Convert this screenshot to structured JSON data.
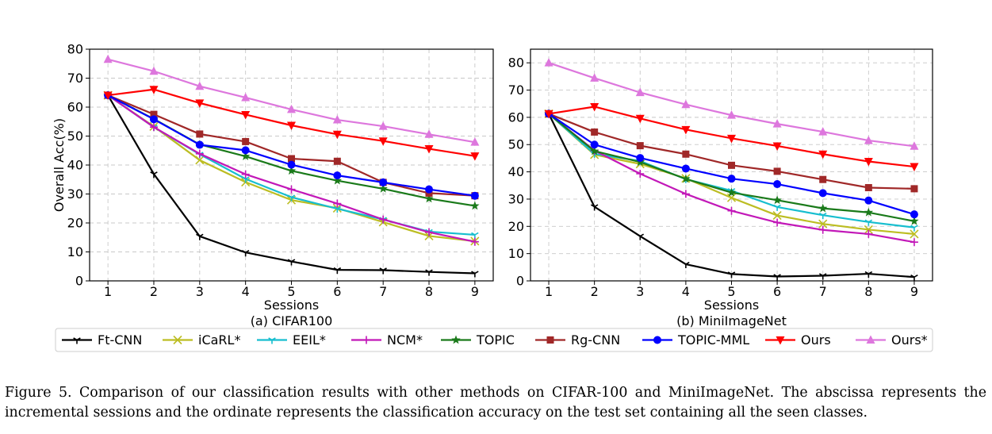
{
  "figure": {
    "caption": "Figure 5. Comparison of our classification results with other methods on CIFAR-100 and MiniImageNet. The abscissa represents the incremental sessions and the ordinate represents the classification accuracy on the test set containing all the seen classes.",
    "legend": [
      {
        "name": "Ft-CNN",
        "color": "#000000",
        "marker": "tri_down"
      },
      {
        "name": "iCaRL*",
        "color": "#bcbd22",
        "marker": "x"
      },
      {
        "name": "EEIL*",
        "color": "#17becf",
        "marker": "tri_down"
      },
      {
        "name": "NCM*",
        "color": "#c218b8",
        "marker": "plus"
      },
      {
        "name": "TOPIC",
        "color": "#1a7a1a",
        "marker": "star"
      },
      {
        "name": "Rg-CNN",
        "color": "#a02828",
        "marker": "square"
      },
      {
        "name": "TOPIC-MML",
        "color": "#0000ff",
        "marker": "circle"
      },
      {
        "name": "Ours",
        "color": "#ff0000",
        "marker": "triangle_down"
      },
      {
        "name": "Ours*",
        "color": "#dd77dd",
        "marker": "triangle_up"
      }
    ]
  },
  "chart_data": [
    {
      "type": "line",
      "title": "(a) CIFAR100",
      "xlabel": "Sessions",
      "ylabel": "Overall Acc(%)",
      "x": [
        1,
        2,
        3,
        4,
        5,
        6,
        7,
        8,
        9
      ],
      "ylim": [
        0,
        80
      ],
      "yticks": [
        0,
        10,
        20,
        30,
        40,
        50,
        60,
        70,
        80
      ],
      "grid": true,
      "series": [
        {
          "name": "Ft-CNN",
          "values": [
            64.1,
            36.9,
            15.4,
            9.8,
            6.7,
            3.8,
            3.7,
            3.1,
            2.6
          ]
        },
        {
          "name": "iCaRL*",
          "values": [
            64.1,
            53.3,
            41.7,
            34.1,
            27.9,
            25.1,
            20.3,
            15.5,
            13.7
          ]
        },
        {
          "name": "EEIL*",
          "values": [
            64.1,
            53.1,
            43.7,
            35.2,
            28.9,
            24.9,
            21.2,
            17.0,
            15.9
          ]
        },
        {
          "name": "NCM*",
          "values": [
            64.1,
            53.1,
            43.9,
            36.8,
            31.6,
            26.7,
            21.2,
            16.8,
            13.5
          ]
        },
        {
          "name": "TOPIC",
          "values": [
            64.1,
            55.9,
            47.1,
            43.0,
            38.0,
            34.6,
            31.8,
            28.4,
            25.9
          ]
        },
        {
          "name": "Rg-CNN",
          "values": [
            64.1,
            57.5,
            50.7,
            48.1,
            42.2,
            41.3,
            34.0,
            30.3,
            29.4
          ]
        },
        {
          "name": "TOPIC-MML",
          "values": [
            64.1,
            55.8,
            47.0,
            45.1,
            40.1,
            36.4,
            34.0,
            31.6,
            29.4
          ]
        },
        {
          "name": "Ours",
          "values": [
            64.1,
            66.1,
            61.4,
            57.4,
            53.7,
            50.6,
            48.3,
            45.6,
            43.1
          ]
        },
        {
          "name": "Ours*",
          "values": [
            76.5,
            72.4,
            67.2,
            63.3,
            59.2,
            55.6,
            53.4,
            50.6,
            47.9
          ]
        }
      ]
    },
    {
      "type": "line",
      "title": "(b) MiniImageNet",
      "xlabel": "Sessions",
      "ylabel": "",
      "x": [
        1,
        2,
        3,
        4,
        5,
        6,
        7,
        8,
        9
      ],
      "ylim": [
        0,
        85
      ],
      "yticks": [
        0,
        10,
        20,
        30,
        40,
        50,
        60,
        70,
        80
      ],
      "grid": true,
      "series": [
        {
          "name": "Ft-CNN",
          "values": [
            61.3,
            27.2,
            16.4,
            6.1,
            2.5,
            1.6,
            1.9,
            2.6,
            1.4
          ]
        },
        {
          "name": "iCaRL*",
          "values": [
            61.3,
            46.3,
            42.9,
            37.6,
            30.5,
            24.0,
            20.9,
            18.8,
            17.2
          ]
        },
        {
          "name": "EEIL*",
          "values": [
            61.3,
            46.6,
            44.0,
            37.3,
            33.1,
            27.1,
            24.1,
            21.6,
            19.6
          ]
        },
        {
          "name": "NCM*",
          "values": [
            61.3,
            47.8,
            39.3,
            31.9,
            25.7,
            21.4,
            18.7,
            17.2,
            14.2
          ]
        },
        {
          "name": "TOPIC",
          "values": [
            61.3,
            47.6,
            43.6,
            37.4,
            32.4,
            29.6,
            26.6,
            25.1,
            21.9
          ]
        },
        {
          "name": "Rg-CNN",
          "values": [
            61.3,
            54.6,
            49.6,
            46.5,
            42.4,
            40.2,
            37.2,
            34.2,
            33.8
          ]
        },
        {
          "name": "TOPIC-MML",
          "values": [
            61.3,
            50.0,
            45.1,
            41.2,
            37.5,
            35.5,
            32.2,
            29.5,
            24.4
          ]
        },
        {
          "name": "Ours",
          "values": [
            61.3,
            63.9,
            59.6,
            55.5,
            52.3,
            49.5,
            46.5,
            43.8,
            41.9
          ]
        },
        {
          "name": "Ours*",
          "values": [
            80.0,
            74.4,
            69.1,
            64.7,
            60.8,
            57.6,
            54.7,
            51.5,
            49.4
          ]
        }
      ]
    }
  ]
}
